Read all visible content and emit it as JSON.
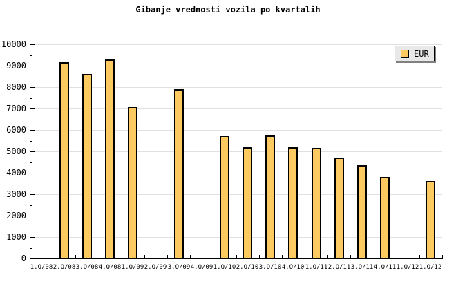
{
  "chart_data": {
    "type": "bar",
    "title": "Gibanje vrednosti vozila po kvartalih",
    "categories": [
      "1.Q/08",
      "2.Q/08",
      "3.Q/08",
      "4.Q/08",
      "1.Q/09",
      "2.Q/09",
      "3.Q/09",
      "4.Q/09",
      "1.Q/10",
      "2.Q/10",
      "3.Q/10",
      "4.Q/10",
      "1.Q/11",
      "2.Q/11",
      "3.Q/11",
      "4.Q/11",
      "1.Q/12",
      "1.Q/12"
    ],
    "series": [
      {
        "name": "EUR",
        "values": [
          null,
          9150,
          8600,
          9300,
          7050,
          null,
          7900,
          null,
          5700,
          5200,
          5750,
          5200,
          5150,
          4700,
          4350,
          3800,
          null,
          3600
        ]
      }
    ],
    "ylim": [
      0,
      10000
    ],
    "ytick_major": 1000,
    "ytick_minor": 500,
    "grid": "horizontal",
    "legend_position": "top-right"
  },
  "legend": {
    "label": "EUR"
  },
  "colors": {
    "bar_fill": "#FCCA60",
    "bar_border": "#000000",
    "gridline": "#E0E0E0",
    "axis": "#000000",
    "text": "#000000",
    "legend_bg": "#E8E8E8",
    "legend_shadow": "#808080",
    "background": "#FFFFFF"
  }
}
